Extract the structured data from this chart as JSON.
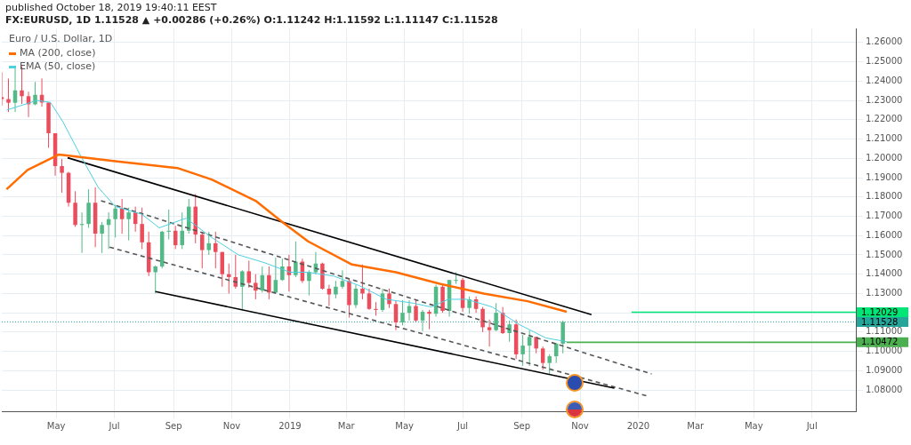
{
  "chart_data": {
    "type": "candlestick",
    "title": "Euro / U.S. Dollar, 1D",
    "subtitle": "published October 18, 2019 19:40:11 EEST",
    "annotations": [
      "FX:EURUSD, 1D 1.11528 ▲ +0.00286 (+0.26%) O:1.11242 H:1.11592 L:1.11147 C:1.11528"
    ],
    "x": [
      "2018-03-05",
      "2018-03-12",
      "2018-03-19",
      "2018-03-26",
      "2018-04-02",
      "2018-04-09",
      "2018-04-16",
      "2018-04-23",
      "2018-04-30",
      "2018-05-07",
      "2018-05-14",
      "2018-05-21",
      "2018-05-28",
      "2018-06-04",
      "2018-06-11",
      "2018-06-18",
      "2018-06-25",
      "2018-07-02",
      "2018-07-09",
      "2018-07-16",
      "2018-07-23",
      "2018-07-30",
      "2018-08-06",
      "2018-08-13",
      "2018-08-20",
      "2018-08-27",
      "2018-09-03",
      "2018-09-10",
      "2018-09-17",
      "2018-09-24",
      "2018-10-01",
      "2018-10-08",
      "2018-10-15",
      "2018-10-22",
      "2018-10-29",
      "2018-11-05",
      "2018-11-12",
      "2018-11-19",
      "2018-11-26",
      "2018-12-03",
      "2018-12-10",
      "2018-12-17",
      "2018-12-24",
      "2018-12-31",
      "2019-01-07",
      "2019-01-14",
      "2019-01-21",
      "2019-01-28",
      "2019-02-04",
      "2019-02-11",
      "2019-02-18",
      "2019-02-25",
      "2019-03-04",
      "2019-03-11",
      "2019-03-18",
      "2019-03-25",
      "2019-04-01",
      "2019-04-08",
      "2019-04-15",
      "2019-04-22",
      "2019-04-29",
      "2019-05-06",
      "2019-05-13",
      "2019-05-20",
      "2019-05-27",
      "2019-06-03",
      "2019-06-10",
      "2019-06-17",
      "2019-06-24",
      "2019-07-01",
      "2019-07-08",
      "2019-07-15",
      "2019-07-22",
      "2019-07-29",
      "2019-08-05",
      "2019-08-12",
      "2019-08-19",
      "2019-08-26",
      "2019-09-02",
      "2019-09-09",
      "2019-09-16",
      "2019-09-23",
      "2019-09-30",
      "2019-10-07",
      "2019-10-14"
    ],
    "ohlc": [
      [
        1.2317,
        1.2446,
        1.2273,
        1.2307
      ],
      [
        1.2307,
        1.2413,
        1.224,
        1.2288
      ],
      [
        1.2288,
        1.2476,
        1.224,
        1.2352
      ],
      [
        1.2352,
        1.2477,
        1.2282,
        1.2322
      ],
      [
        1.2322,
        1.2345,
        1.2214,
        1.228
      ],
      [
        1.228,
        1.2396,
        1.2275,
        1.2329
      ],
      [
        1.2329,
        1.2414,
        1.2268,
        1.2289
      ],
      [
        1.2289,
        1.229,
        1.2055,
        1.213
      ],
      [
        1.213,
        1.213,
        1.191,
        1.196
      ],
      [
        1.196,
        1.1996,
        1.1822,
        1.1925
      ],
      [
        1.1925,
        1.193,
        1.175,
        1.177
      ],
      [
        1.177,
        1.183,
        1.1645,
        1.1655
      ],
      [
        1.1655,
        1.172,
        1.151,
        1.166
      ],
      [
        1.166,
        1.184,
        1.164,
        1.177
      ],
      [
        1.177,
        1.185,
        1.154,
        1.161
      ],
      [
        1.161,
        1.167,
        1.151,
        1.1655
      ],
      [
        1.1655,
        1.172,
        1.153,
        1.1685
      ],
      [
        1.1685,
        1.176,
        1.159,
        1.174
      ],
      [
        1.174,
        1.179,
        1.161,
        1.1685
      ],
      [
        1.1685,
        1.1745,
        1.1575,
        1.172
      ],
      [
        1.172,
        1.175,
        1.162,
        1.166
      ],
      [
        1.166,
        1.1745,
        1.153,
        1.1565
      ],
      [
        1.1565,
        1.162,
        1.139,
        1.141
      ],
      [
        1.141,
        1.1445,
        1.13,
        1.144
      ],
      [
        1.144,
        1.1625,
        1.143,
        1.162
      ],
      [
        1.162,
        1.1735,
        1.158,
        1.1625
      ],
      [
        1.1625,
        1.165,
        1.153,
        1.155
      ],
      [
        1.155,
        1.172,
        1.153,
        1.1625
      ],
      [
        1.1625,
        1.179,
        1.161,
        1.175
      ],
      [
        1.175,
        1.1815,
        1.156,
        1.1605
      ],
      [
        1.1605,
        1.162,
        1.143,
        1.1525
      ],
      [
        1.1525,
        1.162,
        1.15,
        1.156
      ],
      [
        1.156,
        1.162,
        1.143,
        1.1515
      ],
      [
        1.1515,
        1.1515,
        1.1335,
        1.14
      ],
      [
        1.14,
        1.1455,
        1.13,
        1.1385
      ],
      [
        1.1385,
        1.15,
        1.1325,
        1.1335
      ],
      [
        1.1335,
        1.142,
        1.1215,
        1.1415
      ],
      [
        1.1415,
        1.147,
        1.133,
        1.1355
      ],
      [
        1.1355,
        1.14,
        1.127,
        1.1315
      ],
      [
        1.1315,
        1.144,
        1.1305,
        1.1395
      ],
      [
        1.1395,
        1.144,
        1.127,
        1.1305
      ],
      [
        1.1305,
        1.1485,
        1.13,
        1.137
      ],
      [
        1.137,
        1.148,
        1.1365,
        1.144
      ],
      [
        1.144,
        1.15,
        1.131,
        1.1395
      ],
      [
        1.1395,
        1.157,
        1.1385,
        1.1465
      ],
      [
        1.1465,
        1.148,
        1.1355,
        1.1365
      ],
      [
        1.1365,
        1.142,
        1.129,
        1.141
      ],
      [
        1.141,
        1.1515,
        1.14,
        1.1455
      ],
      [
        1.1455,
        1.146,
        1.132,
        1.1325
      ],
      [
        1.1325,
        1.1345,
        1.1235,
        1.1295
      ],
      [
        1.1295,
        1.1365,
        1.1275,
        1.1335
      ],
      [
        1.1335,
        1.142,
        1.1325,
        1.1365
      ],
      [
        1.1365,
        1.1375,
        1.1175,
        1.124
      ],
      [
        1.124,
        1.1345,
        1.1225,
        1.1325
      ],
      [
        1.1325,
        1.145,
        1.127,
        1.13
      ],
      [
        1.13,
        1.1325,
        1.1215,
        1.122
      ],
      [
        1.122,
        1.1255,
        1.1185,
        1.1215
      ],
      [
        1.1215,
        1.1325,
        1.1205,
        1.13
      ],
      [
        1.13,
        1.1325,
        1.1225,
        1.1245
      ],
      [
        1.1245,
        1.1265,
        1.111,
        1.115
      ],
      [
        1.115,
        1.1265,
        1.1135,
        1.12
      ],
      [
        1.12,
        1.1265,
        1.116,
        1.1235
      ],
      [
        1.1235,
        1.1265,
        1.1155,
        1.116
      ],
      [
        1.116,
        1.1215,
        1.1105,
        1.1205
      ],
      [
        1.1205,
        1.1215,
        1.1115,
        1.1195
      ],
      [
        1.1195,
        1.1345,
        1.118,
        1.1335
      ],
      [
        1.1335,
        1.1345,
        1.12,
        1.121
      ],
      [
        1.121,
        1.137,
        1.118,
        1.137
      ],
      [
        1.137,
        1.141,
        1.135,
        1.137
      ],
      [
        1.137,
        1.138,
        1.1205,
        1.1225
      ],
      [
        1.1225,
        1.1285,
        1.1195,
        1.127
      ],
      [
        1.127,
        1.1285,
        1.12,
        1.122
      ],
      [
        1.122,
        1.123,
        1.11,
        1.1125
      ],
      [
        1.1125,
        1.1165,
        1.1025,
        1.111
      ],
      [
        1.111,
        1.125,
        1.1105,
        1.12
      ],
      [
        1.12,
        1.123,
        1.109,
        1.1095
      ],
      [
        1.1095,
        1.116,
        1.105,
        1.114
      ],
      [
        1.114,
        1.1165,
        1.096,
        1.0985
      ],
      [
        1.0985,
        1.1085,
        1.0925,
        1.103
      ],
      [
        1.103,
        1.111,
        1.0925,
        1.1075
      ],
      [
        1.1075,
        1.1075,
        1.099,
        1.1015
      ],
      [
        1.1015,
        1.1025,
        1.0905,
        1.094
      ],
      [
        1.094,
        1.0985,
        1.088,
        1.0975
      ],
      [
        1.0975,
        1.1045,
        1.094,
        1.104
      ],
      [
        1.104,
        1.11592,
        1.099,
        1.11528
      ]
    ],
    "series": [
      {
        "name": "MA (200, close)",
        "type": "line",
        "color": "#ff6d00",
        "x": [
          "2018-03-10",
          "2018-04-01",
          "2018-05-04",
          "2018-07-02",
          "2018-09-05",
          "2018-10-11",
          "2018-11-26",
          "2018-12-24",
          "2019-01-20",
          "2019-03-07",
          "2019-04-22",
          "2019-06-07",
          "2019-07-23",
          "2019-09-07",
          "2019-10-18"
        ],
        "values": [
          1.184,
          1.194,
          1.202,
          1.1985,
          1.195,
          1.189,
          1.178,
          1.167,
          1.157,
          1.145,
          1.141,
          1.135,
          1.13,
          1.126,
          1.1205
        ]
      },
      {
        "name": "EMA (50, close)",
        "type": "line",
        "color": "#4dd0e1",
        "x": [
          "2018-03-10",
          "2018-04-11",
          "2018-04-25",
          "2018-05-08",
          "2018-05-27",
          "2018-06-14",
          "2018-07-02",
          "2018-07-30",
          "2018-08-17",
          "2018-09-14",
          "2018-10-11",
          "2018-11-08",
          "2018-12-05",
          "2019-01-01",
          "2019-01-20",
          "2019-02-16",
          "2019-03-15",
          "2019-04-12",
          "2019-05-10",
          "2019-05-29",
          "2019-06-16",
          "2019-07-05",
          "2019-08-01",
          "2019-08-29",
          "2019-09-26",
          "2019-10-18"
        ],
        "values": [
          1.225,
          1.23,
          1.229,
          1.219,
          1.201,
          1.185,
          1.175,
          1.171,
          1.164,
          1.169,
          1.159,
          1.15,
          1.146,
          1.141,
          1.141,
          1.139,
          1.134,
          1.127,
          1.125,
          1.123,
          1.127,
          1.127,
          1.123,
          1.114,
          1.107,
          1.105
        ]
      },
      {
        "type": "line",
        "color": "#000000",
        "x": [
          "2018-05-13",
          "2019-11-13"
        ],
        "values": [
          1.2003,
          1.119
        ]
      },
      {
        "type": "line",
        "color": "#000000",
        "x": [
          "2018-08-13",
          "2019-12-07"
        ],
        "values": [
          1.131,
          1.081
        ]
      },
      {
        "type": "line",
        "color": "#555555",
        "line_style": "dashed",
        "x": [
          "2018-06-17",
          "2020-01-15"
        ],
        "values": [
          1.178,
          1.0883
        ]
      },
      {
        "type": "line",
        "color": "#555555",
        "line_style": "dashed",
        "x": [
          "2018-06-26",
          "2020-01-11"
        ],
        "values": [
          1.154,
          1.0768
        ]
      },
      {
        "type": "line",
        "color": "#00e676",
        "x": [
          "2019-12-25",
          "2020-08-16"
        ],
        "values": [
          1.12029,
          1.12029
        ],
        "value_labels": [
          null,
          "1.12029"
        ]
      },
      {
        "type": "line",
        "color": "#4caf50",
        "x": [
          "2019-10-18",
          "2020-08-16"
        ],
        "values": [
          1.10472,
          1.10472
        ],
        "value_labels": [
          null,
          "1.10472"
        ]
      }
    ],
    "ref_lines": [
      {
        "axis": "y",
        "value": 1.11528,
        "label": "1.11528",
        "color": "#26a69a",
        "line_style": "dotted"
      }
    ],
    "xlim": [
      "2018-03-05",
      "2020-08-16"
    ],
    "xticks": [
      {
        "value": "2018-05-01",
        "label": "May"
      },
      {
        "value": "2018-07-01",
        "label": "Jul"
      },
      {
        "value": "2018-09-01",
        "label": "Sep"
      },
      {
        "value": "2018-11-01",
        "label": "Nov"
      },
      {
        "value": "2019-01-01",
        "label": "2019"
      },
      {
        "value": "2019-03-01",
        "label": "Mar"
      },
      {
        "value": "2019-05-01",
        "label": "May"
      },
      {
        "value": "2019-07-01",
        "label": "Jul"
      },
      {
        "value": "2019-09-01",
        "label": "Sep"
      },
      {
        "value": "2019-11-01",
        "label": "Nov"
      },
      {
        "value": "2020-01-01",
        "label": "2020"
      },
      {
        "value": "2020-03-01",
        "label": "Mar"
      },
      {
        "value": "2020-05-01",
        "label": "May"
      },
      {
        "value": "2020-07-01",
        "label": "Jul"
      }
    ],
    "ylim": [
      1.069,
      1.2673
    ],
    "yticks": [
      {
        "value": 1.08,
        "label": "1.08000"
      },
      {
        "value": 1.09,
        "label": "1.09000"
      },
      {
        "value": 1.1,
        "label": "1.10000"
      },
      {
        "value": 1.11,
        "label": "1.11000"
      },
      {
        "value": 1.12,
        "label": null
      },
      {
        "value": 1.13,
        "label": "1.13000"
      },
      {
        "value": 1.14,
        "label": "1.14000"
      },
      {
        "value": 1.15,
        "label": "1.15000"
      },
      {
        "value": 1.16,
        "label": "1.16000"
      },
      {
        "value": 1.17,
        "label": "1.17000"
      },
      {
        "value": 1.18,
        "label": "1.18000"
      },
      {
        "value": 1.19,
        "label": "1.19000"
      },
      {
        "value": 1.2,
        "label": "1.20000"
      },
      {
        "value": 1.21,
        "label": "1.21000"
      },
      {
        "value": 1.22,
        "label": "1.22000"
      },
      {
        "value": 1.23,
        "label": "1.23000"
      },
      {
        "value": 1.24,
        "label": "1.24000"
      },
      {
        "value": 1.25,
        "label": "1.25000"
      },
      {
        "value": 1.26,
        "label": "1.26000"
      }
    ],
    "grid": true,
    "legend": "top left"
  }
}
